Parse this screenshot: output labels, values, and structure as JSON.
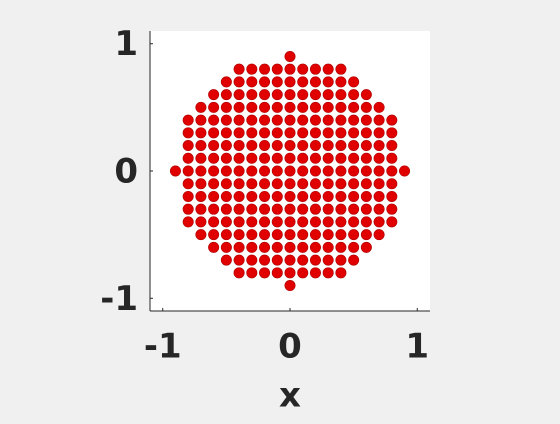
{
  "chart_data": {
    "type": "scatter",
    "xlabel": "x",
    "color": "#e00000",
    "xlim": [
      -1.1,
      1.1
    ],
    "ylim": [
      -1.1,
      1.1
    ],
    "xticks": [
      -1,
      0,
      1
    ],
    "yticks": [
      -1,
      0,
      1
    ],
    "x": [
      0,
      -0.4,
      -0.3,
      -0.2,
      -0.1,
      0,
      0.1,
      0.2,
      0.3,
      0.4,
      -0.5,
      -0.4,
      -0.3,
      -0.2,
      -0.1,
      0,
      0.1,
      0.2,
      0.3,
      0.4,
      0.5,
      -0.6,
      -0.5,
      -0.4,
      -0.3,
      -0.2,
      -0.1,
      0,
      0.1,
      0.2,
      0.3,
      0.4,
      0.5,
      0.6,
      -0.7,
      -0.6,
      -0.5,
      -0.4,
      -0.3,
      -0.2,
      -0.1,
      0,
      0.1,
      0.2,
      0.3,
      0.4,
      0.5,
      0.6,
      0.7,
      -0.8,
      -0.7,
      -0.6,
      -0.5,
      -0.4,
      -0.3,
      -0.2,
      -0.1,
      0,
      0.1,
      0.2,
      0.3,
      0.4,
      0.5,
      0.6,
      0.7,
      0.8,
      -0.8,
      -0.7,
      -0.6,
      -0.5,
      -0.4,
      -0.3,
      -0.2,
      -0.1,
      0,
      0.1,
      0.2,
      0.3,
      0.4,
      0.5,
      0.6,
      0.7,
      0.8,
      -0.8,
      -0.7,
      -0.6,
      -0.5,
      -0.4,
      -0.3,
      -0.2,
      -0.1,
      0,
      0.1,
      0.2,
      0.3,
      0.4,
      0.5,
      0.6,
      0.7,
      0.8,
      -0.8,
      -0.7,
      -0.6,
      -0.5,
      -0.4,
      -0.3,
      -0.2,
      -0.1,
      0,
      0.1,
      0.2,
      0.3,
      0.4,
      0.5,
      0.6,
      0.7,
      0.8,
      -0.9,
      -0.8,
      -0.7,
      -0.6,
      -0.5,
      -0.4,
      -0.3,
      -0.2,
      -0.1,
      0,
      0.1,
      0.2,
      0.3,
      0.4,
      0.5,
      0.6,
      0.7,
      0.8,
      0.9,
      -0.8,
      -0.7,
      -0.6,
      -0.5,
      -0.4,
      -0.3,
      -0.2,
      -0.1,
      0,
      0.1,
      0.2,
      0.3,
      0.4,
      0.5,
      0.6,
      0.7,
      0.8,
      -0.8,
      -0.7,
      -0.6,
      -0.5,
      -0.4,
      -0.3,
      -0.2,
      -0.1,
      0,
      0.1,
      0.2,
      0.3,
      0.4,
      0.5,
      0.6,
      0.7,
      0.8,
      -0.8,
      -0.7,
      -0.6,
      -0.5,
      -0.4,
      -0.3,
      -0.2,
      -0.1,
      0,
      0.1,
      0.2,
      0.3,
      0.4,
      0.5,
      0.6,
      0.7,
      0.8,
      -0.8,
      -0.7,
      -0.6,
      -0.5,
      -0.4,
      -0.3,
      -0.2,
      -0.1,
      0,
      0.1,
      0.2,
      0.3,
      0.4,
      0.5,
      0.6,
      0.7,
      0.8,
      -0.7,
      -0.6,
      -0.5,
      -0.4,
      -0.3,
      -0.2,
      -0.1,
      0,
      0.1,
      0.2,
      0.3,
      0.4,
      0.5,
      0.6,
      0.7,
      -0.6,
      -0.5,
      -0.4,
      -0.3,
      -0.2,
      -0.1,
      0,
      0.1,
      0.2,
      0.3,
      0.4,
      0.5,
      0.6,
      -0.5,
      -0.4,
      -0.3,
      -0.2,
      -0.1,
      0,
      0.1,
      0.2,
      0.3,
      0.4,
      0.5,
      -0.4,
      -0.3,
      -0.2,
      -0.1,
      0,
      0.1,
      0.2,
      0.3,
      0.4,
      0
    ],
    "y": [
      0.9,
      0.8,
      0.8,
      0.8,
      0.8,
      0.8,
      0.8,
      0.8,
      0.8,
      0.8,
      0.7,
      0.7,
      0.7,
      0.7,
      0.7,
      0.7,
      0.7,
      0.7,
      0.7,
      0.7,
      0.7,
      0.6,
      0.6,
      0.6,
      0.6,
      0.6,
      0.6,
      0.6,
      0.6,
      0.6,
      0.6,
      0.6,
      0.6,
      0.6,
      0.5,
      0.5,
      0.5,
      0.5,
      0.5,
      0.5,
      0.5,
      0.5,
      0.5,
      0.5,
      0.5,
      0.5,
      0.5,
      0.5,
      0.5,
      0.4,
      0.4,
      0.4,
      0.4,
      0.4,
      0.4,
      0.4,
      0.4,
      0.4,
      0.4,
      0.4,
      0.4,
      0.4,
      0.4,
      0.4,
      0.4,
      0.4,
      0.3,
      0.3,
      0.3,
      0.3,
      0.3,
      0.3,
      0.3,
      0.3,
      0.3,
      0.3,
      0.3,
      0.3,
      0.3,
      0.3,
      0.3,
      0.3,
      0.3,
      0.2,
      0.2,
      0.2,
      0.2,
      0.2,
      0.2,
      0.2,
      0.2,
      0.2,
      0.2,
      0.2,
      0.2,
      0.2,
      0.2,
      0.2,
      0.2,
      0.2,
      0.1,
      0.1,
      0.1,
      0.1,
      0.1,
      0.1,
      0.1,
      0.1,
      0.1,
      0.1,
      0.1,
      0.1,
      0.1,
      0.1,
      0.1,
      0.1,
      0.1,
      0,
      0,
      0,
      0,
      0,
      0,
      0,
      0,
      0,
      0,
      0,
      0,
      0,
      0,
      0,
      0,
      0,
      0,
      0,
      -0.1,
      -0.1,
      -0.1,
      -0.1,
      -0.1,
      -0.1,
      -0.1,
      -0.1,
      -0.1,
      -0.1,
      -0.1,
      -0.1,
      -0.1,
      -0.1,
      -0.1,
      -0.1,
      -0.1,
      -0.2,
      -0.2,
      -0.2,
      -0.2,
      -0.2,
      -0.2,
      -0.2,
      -0.2,
      -0.2,
      -0.2,
      -0.2,
      -0.2,
      -0.2,
      -0.2,
      -0.2,
      -0.2,
      -0.2,
      -0.3,
      -0.3,
      -0.3,
      -0.3,
      -0.3,
      -0.3,
      -0.3,
      -0.3,
      -0.3,
      -0.3,
      -0.3,
      -0.3,
      -0.3,
      -0.3,
      -0.3,
      -0.3,
      -0.3,
      -0.4,
      -0.4,
      -0.4,
      -0.4,
      -0.4,
      -0.4,
      -0.4,
      -0.4,
      -0.4,
      -0.4,
      -0.4,
      -0.4,
      -0.4,
      -0.4,
      -0.4,
      -0.4,
      -0.4,
      -0.5,
      -0.5,
      -0.5,
      -0.5,
      -0.5,
      -0.5,
      -0.5,
      -0.5,
      -0.5,
      -0.5,
      -0.5,
      -0.5,
      -0.5,
      -0.5,
      -0.5,
      -0.6,
      -0.6,
      -0.6,
      -0.6,
      -0.6,
      -0.6,
      -0.6,
      -0.6,
      -0.6,
      -0.6,
      -0.6,
      -0.6,
      -0.6,
      -0.7,
      -0.7,
      -0.7,
      -0.7,
      -0.7,
      -0.7,
      -0.7,
      -0.7,
      -0.7,
      -0.7,
      -0.7,
      -0.8,
      -0.8,
      -0.8,
      -0.8,
      -0.8,
      -0.8,
      -0.8,
      -0.8,
      -0.8,
      -0.9
    ]
  }
}
